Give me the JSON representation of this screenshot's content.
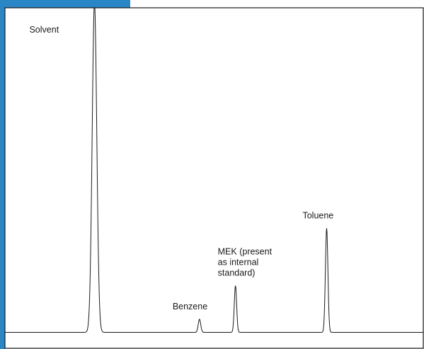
{
  "colors": {
    "accent_bar": "#2b86c5",
    "accent_bar_dark": "#1f6fa8",
    "trace": "#1a1a1a",
    "frame": "#1a1a1a"
  },
  "chart_data": {
    "type": "line",
    "title": "",
    "xlabel": "",
    "ylabel": "",
    "xlim": [
      0,
      100
    ],
    "ylim": [
      0,
      100
    ],
    "grid": false,
    "legend": "none",
    "baseline": 0,
    "series": [
      {
        "peaks": [
          {
            "label": [
              "Solvent"
            ],
            "x": 21.4,
            "height": 100,
            "width": 0.55
          },
          {
            "label": [
              "Benzene"
            ],
            "x": 46.5,
            "height": 4.0,
            "width": 0.3
          },
          {
            "label": [
              "MEK (present",
              "as internal",
              "standard)"
            ],
            "x": 55.1,
            "height": 14.2,
            "width": 0.28
          },
          {
            "label": [
              "Toluene"
            ],
            "x": 76.9,
            "height": 31.6,
            "width": 0.3
          }
        ]
      }
    ]
  }
}
